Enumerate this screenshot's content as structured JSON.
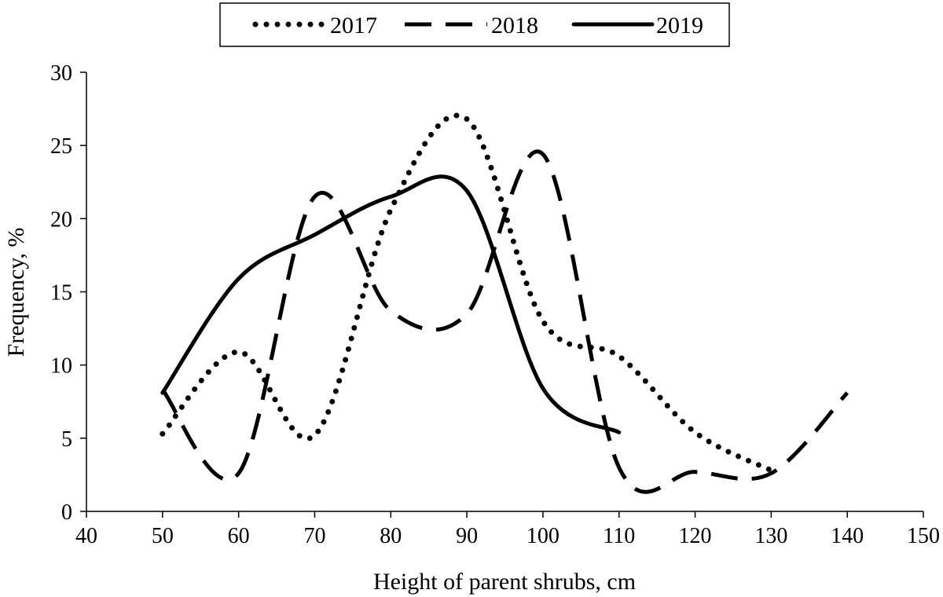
{
  "chart_data": {
    "type": "line",
    "title": "",
    "xlabel": "Height of parent shrubs, cm",
    "ylabel": "Frequency, %",
    "xlim": [
      40,
      150
    ],
    "ylim": [
      0,
      30
    ],
    "xticks": [
      40,
      50,
      60,
      70,
      80,
      90,
      100,
      110,
      120,
      130,
      140,
      150
    ],
    "yticks": [
      0,
      5,
      10,
      15,
      20,
      25,
      30
    ],
    "grid": false,
    "legend_position": "top-center",
    "smooth": true,
    "series": [
      {
        "name": "2017",
        "style": "dotted",
        "color": "#000000",
        "x": [
          50,
          60,
          70,
          80,
          90,
          100,
          110,
          120,
          130
        ],
        "y": [
          5.3,
          10.9,
          5.2,
          20.6,
          26.8,
          13.0,
          10.6,
          5.4,
          2.8
        ]
      },
      {
        "name": "2018",
        "style": "dashed",
        "color": "#000000",
        "x": [
          50,
          60,
          70,
          80,
          90,
          100,
          110,
          120,
          130,
          140
        ],
        "y": [
          8.3,
          2.6,
          21.5,
          13.7,
          13.5,
          24.4,
          3.0,
          2.7,
          2.6,
          8.1
        ]
      },
      {
        "name": "2019",
        "style": "solid",
        "color": "#000000",
        "x": [
          50,
          60,
          70,
          80,
          90,
          100,
          110
        ],
        "y": [
          8.1,
          15.9,
          18.9,
          21.5,
          21.9,
          8.4,
          5.4
        ]
      }
    ]
  }
}
